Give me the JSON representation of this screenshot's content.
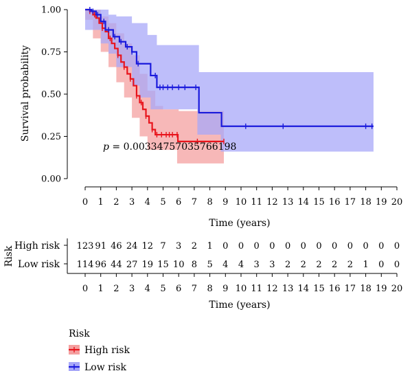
{
  "chart_data": {
    "type": "line",
    "subtype": "kaplan-meier survival curve with risk table",
    "ylabel": "Survival probability",
    "xlabel": "Time (years)",
    "xlim": [
      0,
      20
    ],
    "ylim": [
      0,
      1
    ],
    "x_ticks": [
      "0",
      "1",
      "2",
      "3",
      "4",
      "5",
      "6",
      "7",
      "8",
      "9",
      "10",
      "11",
      "12",
      "13",
      "14",
      "15",
      "16",
      "17",
      "18",
      "19",
      "20"
    ],
    "y_ticks": [
      "0.00",
      "0.25",
      "0.50",
      "0.75",
      "1.00"
    ],
    "grid": false,
    "pvalue_prefix": "p",
    "pvalue_text": " = 0.00334757035766198",
    "series": [
      {
        "name": "High risk",
        "color": "#e8141c",
        "ci_color": "#f4a0a0",
        "points": [
          [
            0,
            1.0
          ],
          [
            0.3,
            0.99
          ],
          [
            0.5,
            0.97
          ],
          [
            0.7,
            0.95
          ],
          [
            0.9,
            0.92
          ],
          [
            1.1,
            0.89
          ],
          [
            1.3,
            0.87
          ],
          [
            1.5,
            0.83
          ],
          [
            1.7,
            0.8
          ],
          [
            1.9,
            0.77
          ],
          [
            2.1,
            0.73
          ],
          [
            2.3,
            0.69
          ],
          [
            2.5,
            0.66
          ],
          [
            2.7,
            0.62
          ],
          [
            2.9,
            0.59
          ],
          [
            3.1,
            0.55
          ],
          [
            3.3,
            0.49
          ],
          [
            3.5,
            0.45
          ],
          [
            3.7,
            0.41
          ],
          [
            3.9,
            0.37
          ],
          [
            4.1,
            0.33
          ],
          [
            4.3,
            0.29
          ],
          [
            4.5,
            0.26
          ],
          [
            5.3,
            0.26
          ],
          [
            5.6,
            0.26
          ],
          [
            5.9,
            0.26
          ],
          [
            5.95,
            0.22
          ],
          [
            8.9,
            0.22
          ]
        ],
        "ci_upper": [
          [
            0,
            1.0
          ],
          [
            0.5,
            1.0
          ],
          [
            1.0,
            0.96
          ],
          [
            1.5,
            0.92
          ],
          [
            2.0,
            0.86
          ],
          [
            2.5,
            0.8
          ],
          [
            3.0,
            0.73
          ],
          [
            3.5,
            0.62
          ],
          [
            4.0,
            0.52
          ],
          [
            4.5,
            0.43
          ],
          [
            5.0,
            0.41
          ],
          [
            5.5,
            0.41
          ],
          [
            5.9,
            0.41
          ],
          [
            6.0,
            0.4
          ],
          [
            8.9,
            0.4
          ]
        ],
        "ci_lower": [
          [
            0,
            1.0
          ],
          [
            0.5,
            0.94
          ],
          [
            1.0,
            0.83
          ],
          [
            1.5,
            0.75
          ],
          [
            2.0,
            0.66
          ],
          [
            2.5,
            0.57
          ],
          [
            3.0,
            0.48
          ],
          [
            3.5,
            0.36
          ],
          [
            4.0,
            0.25
          ],
          [
            4.5,
            0.17
          ],
          [
            5.0,
            0.17
          ],
          [
            5.9,
            0.17
          ],
          [
            6.0,
            0.09
          ],
          [
            8.9,
            0.09
          ]
        ],
        "censor_x": [
          0.3,
          0.6,
          1.1,
          1.6,
          2.1,
          2.5,
          2.9,
          3.3,
          3.6,
          3.9,
          4.3,
          4.6,
          4.9,
          5.2,
          5.4,
          5.6,
          5.9,
          7.2,
          8.9
        ]
      },
      {
        "name": "Low risk",
        "color": "#1a1adc",
        "ci_color": "#a8a8f8",
        "points": [
          [
            0,
            1.0
          ],
          [
            0.4,
            0.99
          ],
          [
            0.7,
            0.97
          ],
          [
            1.0,
            0.93
          ],
          [
            1.3,
            0.88
          ],
          [
            1.8,
            0.84
          ],
          [
            2.2,
            0.81
          ],
          [
            2.6,
            0.78
          ],
          [
            3.0,
            0.75
          ],
          [
            3.3,
            0.68
          ],
          [
            4.2,
            0.61
          ],
          [
            4.6,
            0.54
          ],
          [
            7.2,
            0.54
          ],
          [
            7.3,
            0.39
          ],
          [
            8.7,
            0.39
          ],
          [
            8.75,
            0.31
          ],
          [
            18.5,
            0.31
          ]
        ],
        "ci_upper": [
          [
            0,
            1.0
          ],
          [
            1.0,
            1.0
          ],
          [
            1.5,
            0.97
          ],
          [
            2.0,
            0.96
          ],
          [
            3.0,
            0.92
          ],
          [
            4.0,
            0.85
          ],
          [
            4.6,
            0.79
          ],
          [
            7.2,
            0.79
          ],
          [
            7.3,
            0.63
          ],
          [
            18.5,
            0.63
          ]
        ],
        "ci_lower": [
          [
            0,
            1.0
          ],
          [
            1.0,
            0.88
          ],
          [
            1.5,
            0.8
          ],
          [
            2.0,
            0.74
          ],
          [
            3.0,
            0.66
          ],
          [
            3.5,
            0.55
          ],
          [
            4.2,
            0.48
          ],
          [
            4.6,
            0.41
          ],
          [
            7.2,
            0.41
          ],
          [
            7.3,
            0.26
          ],
          [
            8.7,
            0.26
          ],
          [
            8.75,
            0.16
          ],
          [
            18.5,
            0.16
          ]
        ],
        "censor_x": [
          0.3,
          0.5,
          0.8,
          1.2,
          1.5,
          1.9,
          2.3,
          2.7,
          3.0,
          3.4,
          4.5,
          4.8,
          5.0,
          5.3,
          5.6,
          6.0,
          6.4,
          7.1,
          10.3,
          12.7,
          18.0,
          18.4
        ]
      }
    ],
    "risk_table": {
      "title": "Risk",
      "xlabel": "Time (years)",
      "rows": [
        {
          "name": "High risk",
          "color": "#e8141c",
          "values": [
            123,
            91,
            46,
            24,
            12,
            7,
            3,
            2,
            1,
            0,
            0,
            0,
            0,
            0,
            0,
            0,
            0,
            0,
            0,
            0,
            0
          ]
        },
        {
          "name": "Low risk",
          "color": "#1a1adc",
          "values": [
            114,
            96,
            44,
            27,
            19,
            15,
            10,
            8,
            5,
            4,
            4,
            3,
            3,
            2,
            2,
            2,
            2,
            2,
            1,
            0,
            0
          ]
        }
      ]
    },
    "legend": {
      "title": "Risk",
      "placement": "bottom-left",
      "entries": [
        {
          "label": "High risk",
          "color": "#e8141c",
          "fill": "#f4a0a0"
        },
        {
          "label": "Low risk",
          "color": "#1a1adc",
          "fill": "#a8a8f8"
        }
      ]
    }
  }
}
